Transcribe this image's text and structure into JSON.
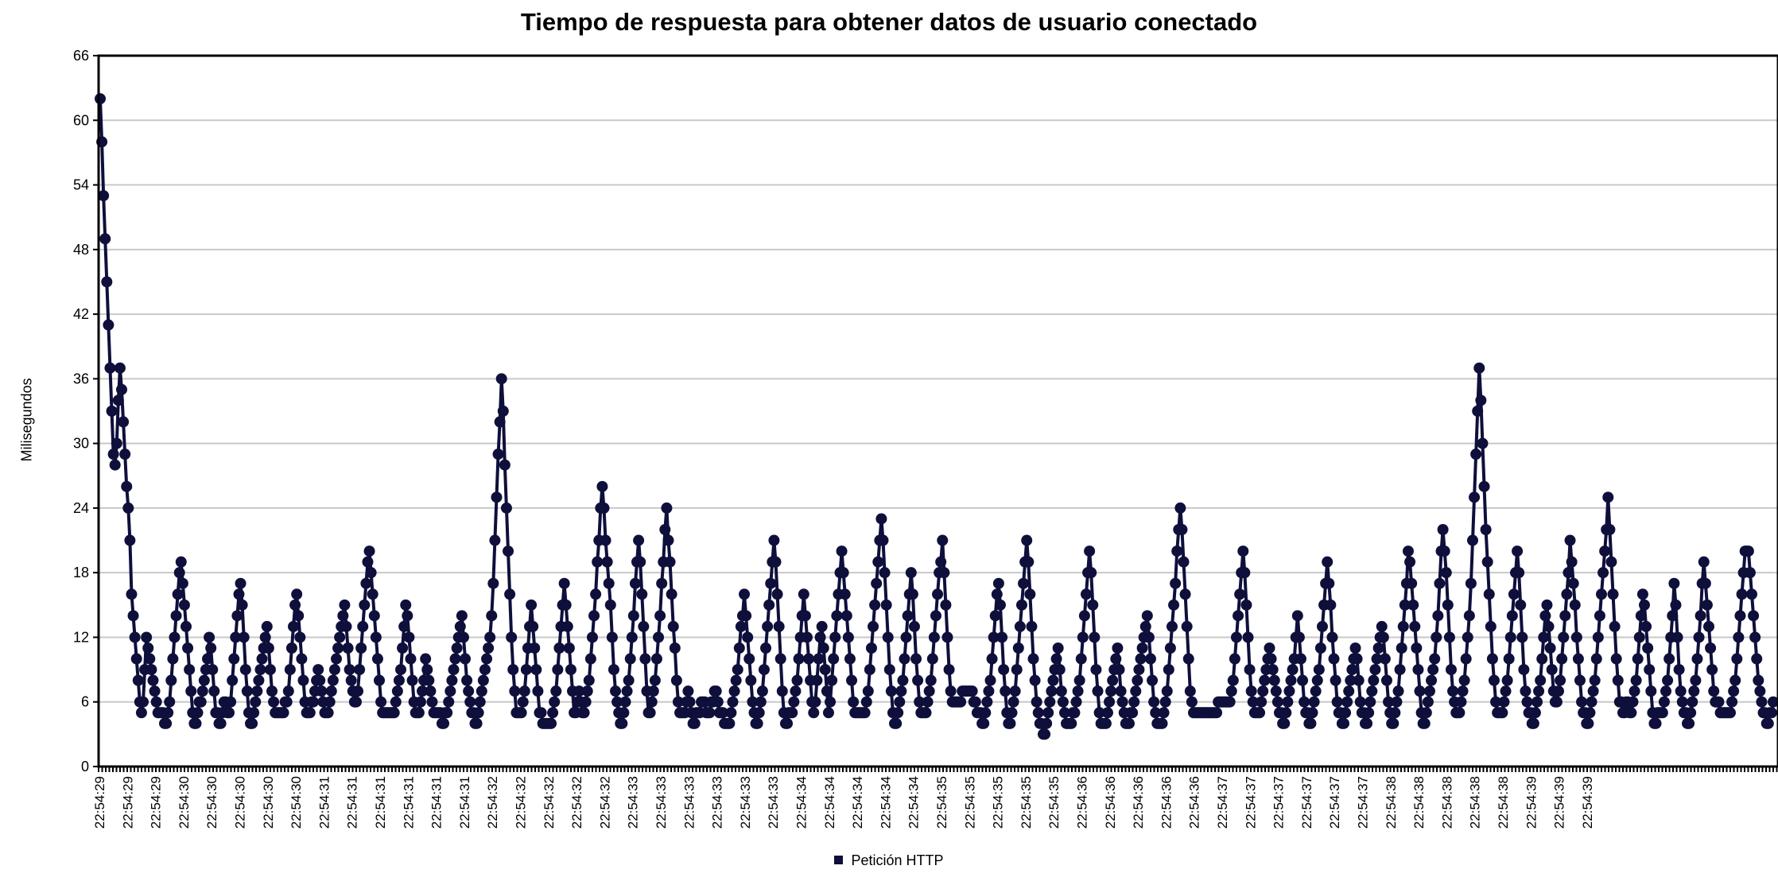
{
  "chart_data": {
    "type": "line",
    "title": "Tiempo de respuesta para obtener datos de usuario conectado",
    "ylabel": "Milisegundos",
    "xlabel": "",
    "ylim": [
      0,
      66
    ],
    "yticks": [
      0,
      6,
      12,
      18,
      24,
      30,
      36,
      42,
      48,
      54,
      60,
      66
    ],
    "grid": "horizontal",
    "legend_position": "bottom-center",
    "x_tick_labels": [
      "22:54:29",
      "22:54:29",
      "22:54:29",
      "22:54:30",
      "22:54:30",
      "22:54:30",
      "22:54:30",
      "22:54:30",
      "22:54:31",
      "22:54:31",
      "22:54:31",
      "22:54:31",
      "22:54:31",
      "22:54:31",
      "22:54:32",
      "22:54:32",
      "22:54:32",
      "22:54:32",
      "22:54:32",
      "22:54:33",
      "22:54:33",
      "22:54:33",
      "22:54:33",
      "22:54:33",
      "22:54:33",
      "22:54:34",
      "22:54:34",
      "22:54:34",
      "22:54:34",
      "22:54:34",
      "22:54:35",
      "22:54:35",
      "22:54:35",
      "22:54:35",
      "22:54:35",
      "22:54:36",
      "22:54:36",
      "22:54:36",
      "22:54:36",
      "22:54:36",
      "22:54:37",
      "22:54:37",
      "22:54:37",
      "22:54:37",
      "22:54:37",
      "22:54:37",
      "22:54:38",
      "22:54:38",
      "22:54:38",
      "22:54:38",
      "22:54:38",
      "22:54:39",
      "22:54:39",
      "22:54:39"
    ],
    "series": [
      {
        "name": "Petición HTTP",
        "color": "#0f0f3c",
        "values": [
          62,
          58,
          53,
          49,
          45,
          41,
          37,
          33,
          29,
          28,
          30,
          34,
          37,
          35,
          32,
          29,
          26,
          24,
          21,
          16,
          14,
          12,
          10,
          8,
          6,
          5,
          6,
          9,
          12,
          11,
          10,
          9,
          8,
          7,
          6,
          5,
          5,
          5,
          5,
          4,
          4,
          5,
          6,
          8,
          10,
          12,
          14,
          16,
          18,
          19,
          17,
          15,
          13,
          11,
          9,
          7,
          5,
          4,
          4,
          5,
          6,
          6,
          7,
          8,
          9,
          10,
          12,
          11,
          9,
          7,
          5,
          5,
          4,
          4,
          5,
          6,
          6,
          5,
          5,
          6,
          8,
          10,
          12,
          14,
          16,
          17,
          15,
          12,
          9,
          7,
          5,
          4,
          4,
          5,
          6,
          7,
          8,
          9,
          10,
          11,
          12,
          13,
          11,
          9,
          7,
          6,
          5,
          5,
          5,
          5,
          5,
          5,
          6,
          6,
          7,
          9,
          11,
          13,
          15,
          16,
          14,
          12,
          10,
          8,
          6,
          5,
          5,
          5,
          6,
          6,
          7,
          8,
          9,
          8,
          7,
          6,
          5,
          5,
          5,
          6,
          7,
          8,
          9,
          10,
          11,
          12,
          13,
          14,
          15,
          13,
          11,
          9,
          8,
          7,
          6,
          6,
          7,
          9,
          11,
          13,
          15,
          17,
          19,
          20,
          18,
          16,
          14,
          12,
          10,
          8,
          6,
          5,
          5,
          5,
          5,
          5,
          5,
          5,
          5,
          6,
          7,
          8,
          9,
          11,
          13,
          15,
          14,
          12,
          10,
          8,
          6,
          5,
          5,
          5,
          6,
          7,
          8,
          10,
          9,
          8,
          7,
          6,
          5,
          5,
          5,
          5,
          5,
          4,
          4,
          5,
          5,
          6,
          7,
          8,
          9,
          10,
          11,
          12,
          13,
          14,
          12,
          10,
          8,
          7,
          6,
          5,
          5,
          4,
          4,
          5,
          6,
          7,
          8,
          9,
          10,
          11,
          12,
          14,
          17,
          21,
          25,
          29,
          32,
          36,
          33,
          28,
          24,
          20,
          16,
          12,
          9,
          7,
          5,
          5,
          5,
          5,
          6,
          7,
          9,
          11,
          13,
          15,
          13,
          11,
          9,
          7,
          5,
          5,
          4,
          4,
          4,
          4,
          4,
          4,
          5,
          6,
          7,
          9,
          11,
          13,
          15,
          17,
          15,
          13,
          11,
          9,
          7,
          5,
          5,
          6,
          7,
          6,
          5,
          5,
          6,
          7,
          8,
          10,
          12,
          14,
          16,
          19,
          21,
          24,
          26,
          24,
          21,
          19,
          17,
          15,
          12,
          9,
          7,
          6,
          5,
          4,
          4,
          5,
          6,
          7,
          8,
          10,
          12,
          14,
          17,
          19,
          21,
          19,
          16,
          13,
          10,
          7,
          5,
          5,
          6,
          7,
          8,
          10,
          12,
          14,
          17,
          19,
          22,
          24,
          21,
          19,
          16,
          13,
          11,
          8,
          6,
          5,
          5,
          5,
          5,
          6,
          7,
          6,
          5,
          4,
          4,
          5,
          5,
          5,
          6,
          6,
          6,
          5,
          5,
          5,
          6,
          6,
          7,
          7,
          6,
          5,
          5,
          5,
          4,
          4,
          4,
          4,
          5,
          6,
          7,
          8,
          9,
          11,
          13,
          14,
          16,
          14,
          12,
          10,
          8,
          6,
          5,
          4,
          4,
          5,
          6,
          7,
          9,
          11,
          13,
          15,
          17,
          19,
          21,
          19,
          16,
          13,
          10,
          7,
          5,
          4,
          4,
          5,
          5,
          5,
          6,
          7,
          8,
          10,
          12,
          14,
          16,
          14,
          12,
          10,
          8,
          6,
          5,
          6,
          8,
          10,
          12,
          13,
          11,
          9,
          7,
          5,
          6,
          8,
          10,
          12,
          14,
          16,
          18,
          20,
          18,
          16,
          14,
          12,
          10,
          8,
          6,
          5,
          5,
          5,
          5,
          5,
          5,
          5,
          6,
          7,
          9,
          11,
          13,
          15,
          17,
          19,
          21,
          23,
          21,
          18,
          15,
          12,
          9,
          7,
          5,
          4,
          4,
          5,
          6,
          7,
          8,
          10,
          12,
          14,
          16,
          18,
          16,
          13,
          10,
          8,
          6,
          5,
          5,
          5,
          5,
          6,
          7,
          8,
          10,
          12,
          14,
          16,
          18,
          19,
          21,
          18,
          15,
          12,
          9,
          7,
          6,
          6,
          6,
          6,
          6,
          6,
          7,
          7,
          7,
          7,
          7,
          7,
          7,
          6,
          6,
          5,
          5,
          5,
          4,
          4,
          5,
          6,
          7,
          8,
          10,
          12,
          14,
          16,
          17,
          15,
          12,
          9,
          7,
          5,
          4,
          4,
          5,
          6,
          7,
          9,
          11,
          13,
          15,
          17,
          19,
          21,
          19,
          16,
          13,
          10,
          8,
          6,
          5,
          4,
          4,
          3,
          3,
          4,
          5,
          6,
          7,
          8,
          9,
          10,
          11,
          9,
          7,
          6,
          5,
          4,
          4,
          4,
          4,
          5,
          5,
          6,
          7,
          8,
          10,
          12,
          14,
          16,
          18,
          20,
          18,
          15,
          12,
          9,
          7,
          5,
          4,
          4,
          4,
          4,
          5,
          6,
          7,
          8,
          9,
          10,
          11,
          9,
          7,
          6,
          5,
          4,
          4,
          4,
          5,
          5,
          6,
          7,
          8,
          9,
          10,
          11,
          12,
          13,
          14,
          12,
          10,
          8,
          6,
          5,
          4,
          4,
          4,
          4,
          5,
          6,
          7,
          9,
          11,
          13,
          15,
          17,
          20,
          22,
          24,
          22,
          19,
          16,
          13,
          10,
          7,
          6,
          5,
          5,
          5,
          5,
          5,
          5,
          5,
          5,
          5,
          5,
          5,
          5,
          5,
          5,
          5,
          6,
          6,
          6,
          6,
          6,
          6,
          6,
          6,
          7,
          8,
          10,
          12,
          14,
          16,
          18,
          20,
          18,
          15,
          12,
          9,
          7,
          6,
          5,
          5,
          5,
          5,
          6,
          7,
          8,
          9,
          10,
          11,
          10,
          9,
          8,
          7,
          6,
          5,
          5,
          4,
          4,
          5,
          6,
          7,
          8,
          9,
          10,
          12,
          14,
          12,
          10,
          8,
          6,
          5,
          5,
          4,
          4,
          5,
          6,
          7,
          8,
          9,
          11,
          13,
          15,
          17,
          19,
          17,
          15,
          12,
          10,
          8,
          6,
          5,
          5,
          4,
          4,
          5,
          6,
          7,
          8,
          9,
          10,
          11,
          10,
          8,
          6,
          5,
          5,
          4,
          4,
          5,
          6,
          7,
          8,
          9,
          10,
          11,
          12,
          13,
          12,
          10,
          8,
          6,
          5,
          4,
          4,
          5,
          6,
          7,
          9,
          11,
          13,
          15,
          17,
          20,
          19,
          17,
          15,
          13,
          11,
          9,
          7,
          5,
          4,
          4,
          5,
          6,
          7,
          8,
          9,
          10,
          12,
          14,
          17,
          20,
          22,
          20,
          18,
          15,
          12,
          9,
          7,
          6,
          5,
          5,
          5,
          6,
          7,
          8,
          10,
          12,
          14,
          17,
          21,
          25,
          29,
          33,
          37,
          34,
          30,
          26,
          22,
          19,
          16,
          13,
          10,
          8,
          6,
          5,
          5,
          5,
          5,
          6,
          7,
          8,
          10,
          12,
          14,
          16,
          18,
          20,
          18,
          15,
          12,
          9,
          7,
          6,
          5,
          5,
          4,
          4,
          5,
          6,
          7,
          8,
          10,
          12,
          14,
          15,
          13,
          11,
          9,
          7,
          6,
          6,
          7,
          8,
          10,
          12,
          14,
          16,
          18,
          21,
          19,
          17,
          15,
          12,
          10,
          8,
          6,
          5,
          5,
          4,
          4,
          5,
          6,
          7,
          8,
          10,
          12,
          14,
          16,
          18,
          20,
          22,
          25,
          22,
          19,
          16,
          13,
          10,
          8,
          6,
          6,
          5,
          5,
          6,
          6,
          5,
          5,
          6,
          7,
          8,
          10,
          12,
          14,
          16,
          15,
          13,
          11,
          9,
          7,
          5,
          4,
          4,
          5,
          5,
          5,
          5,
          6,
          7,
          8,
          10,
          12,
          14,
          17,
          15,
          12,
          9,
          7,
          6,
          5,
          5,
          4,
          4,
          5,
          6,
          7,
          8,
          10,
          12,
          14,
          17,
          19,
          17,
          15,
          13,
          11,
          9,
          7,
          6,
          6,
          6,
          5,
          5,
          5,
          5,
          5,
          5,
          5,
          6,
          7,
          8,
          10,
          12,
          14,
          16,
          18,
          20,
          20,
          20,
          18,
          16,
          14,
          12,
          10,
          8,
          7,
          6,
          5,
          5,
          4,
          4,
          5,
          5,
          6
        ]
      }
    ]
  }
}
